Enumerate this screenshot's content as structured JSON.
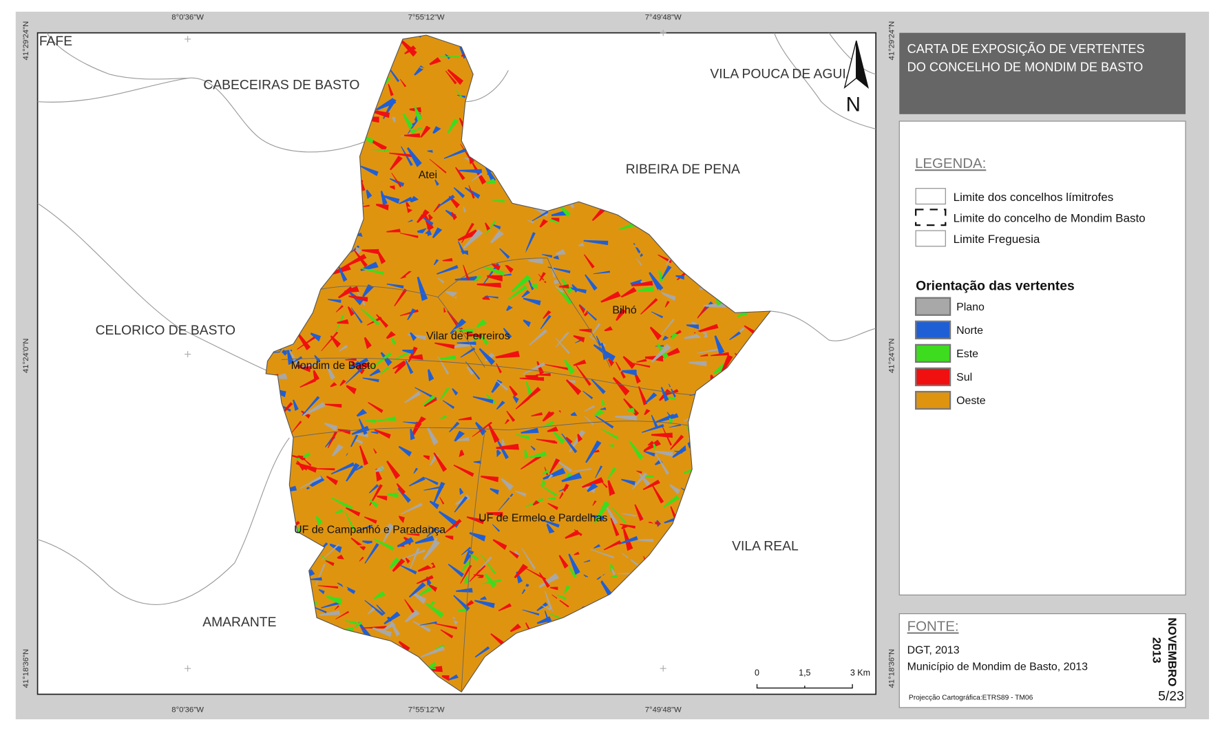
{
  "title": {
    "lines": [
      "CARTA DE EXPOSIÇÃO DE VERTENTES",
      "DO CONCELHO DE MONDIM DE BASTO"
    ]
  },
  "coordinates": {
    "top": [
      "8°0'36\"W",
      "7°55'12\"W",
      "7°49'48\"W"
    ],
    "bottom": [
      "8°0'36\"W",
      "7°55'12\"W",
      "7°49'48\"W"
    ],
    "left": [
      "41°29'24\"N",
      "41°24'0\"N",
      "41°18'36\"N"
    ],
    "right": [
      "41°29'24\"N",
      "41°24'0\"N",
      "41°18'36\"N"
    ]
  },
  "map": {
    "neighbors": [
      "FAFE",
      "CABECEIRAS DE BASTO",
      "VILA POUCA DE AGUIAR",
      "RIBEIRA DE PENA",
      "CELORICO DE BASTO",
      "VILA REAL",
      "AMARANTE"
    ],
    "parishes": [
      "Atei",
      "Bilhó",
      "Vilar de Ferreiros",
      "Mondim de Basto",
      "UF de Campanhó e Paradança",
      "UF de Ermelo e Pardelhas"
    ],
    "north": "N",
    "scale": [
      "0",
      "1,5",
      "3 Km"
    ]
  },
  "legend": {
    "heading": "LEGENDA:",
    "boundaries": [
      "Limite dos concelhos límitrofes",
      "Limite do concelho de Mondim Basto",
      "Limite Freguesia"
    ],
    "aspect_heading": "Orientação das vertentes",
    "classes": [
      {
        "label": "Plano",
        "color": "#a8a8a8"
      },
      {
        "label": "Norte",
        "color": "#1f5fd6"
      },
      {
        "label": "Este",
        "color": "#3ddc1e"
      },
      {
        "label": "Sul",
        "color": "#f01010"
      },
      {
        "label": "Oeste",
        "color": "#df9410"
      }
    ]
  },
  "source": {
    "heading": "FONTE:",
    "lines": [
      "DGT, 2013",
      "Município de Mondim de Basto, 2013"
    ],
    "projection": "Projecção Cartográfica:ETRS89 - TM06",
    "date": [
      "NOVEMBRO",
      "2013"
    ],
    "page": "5/23"
  }
}
